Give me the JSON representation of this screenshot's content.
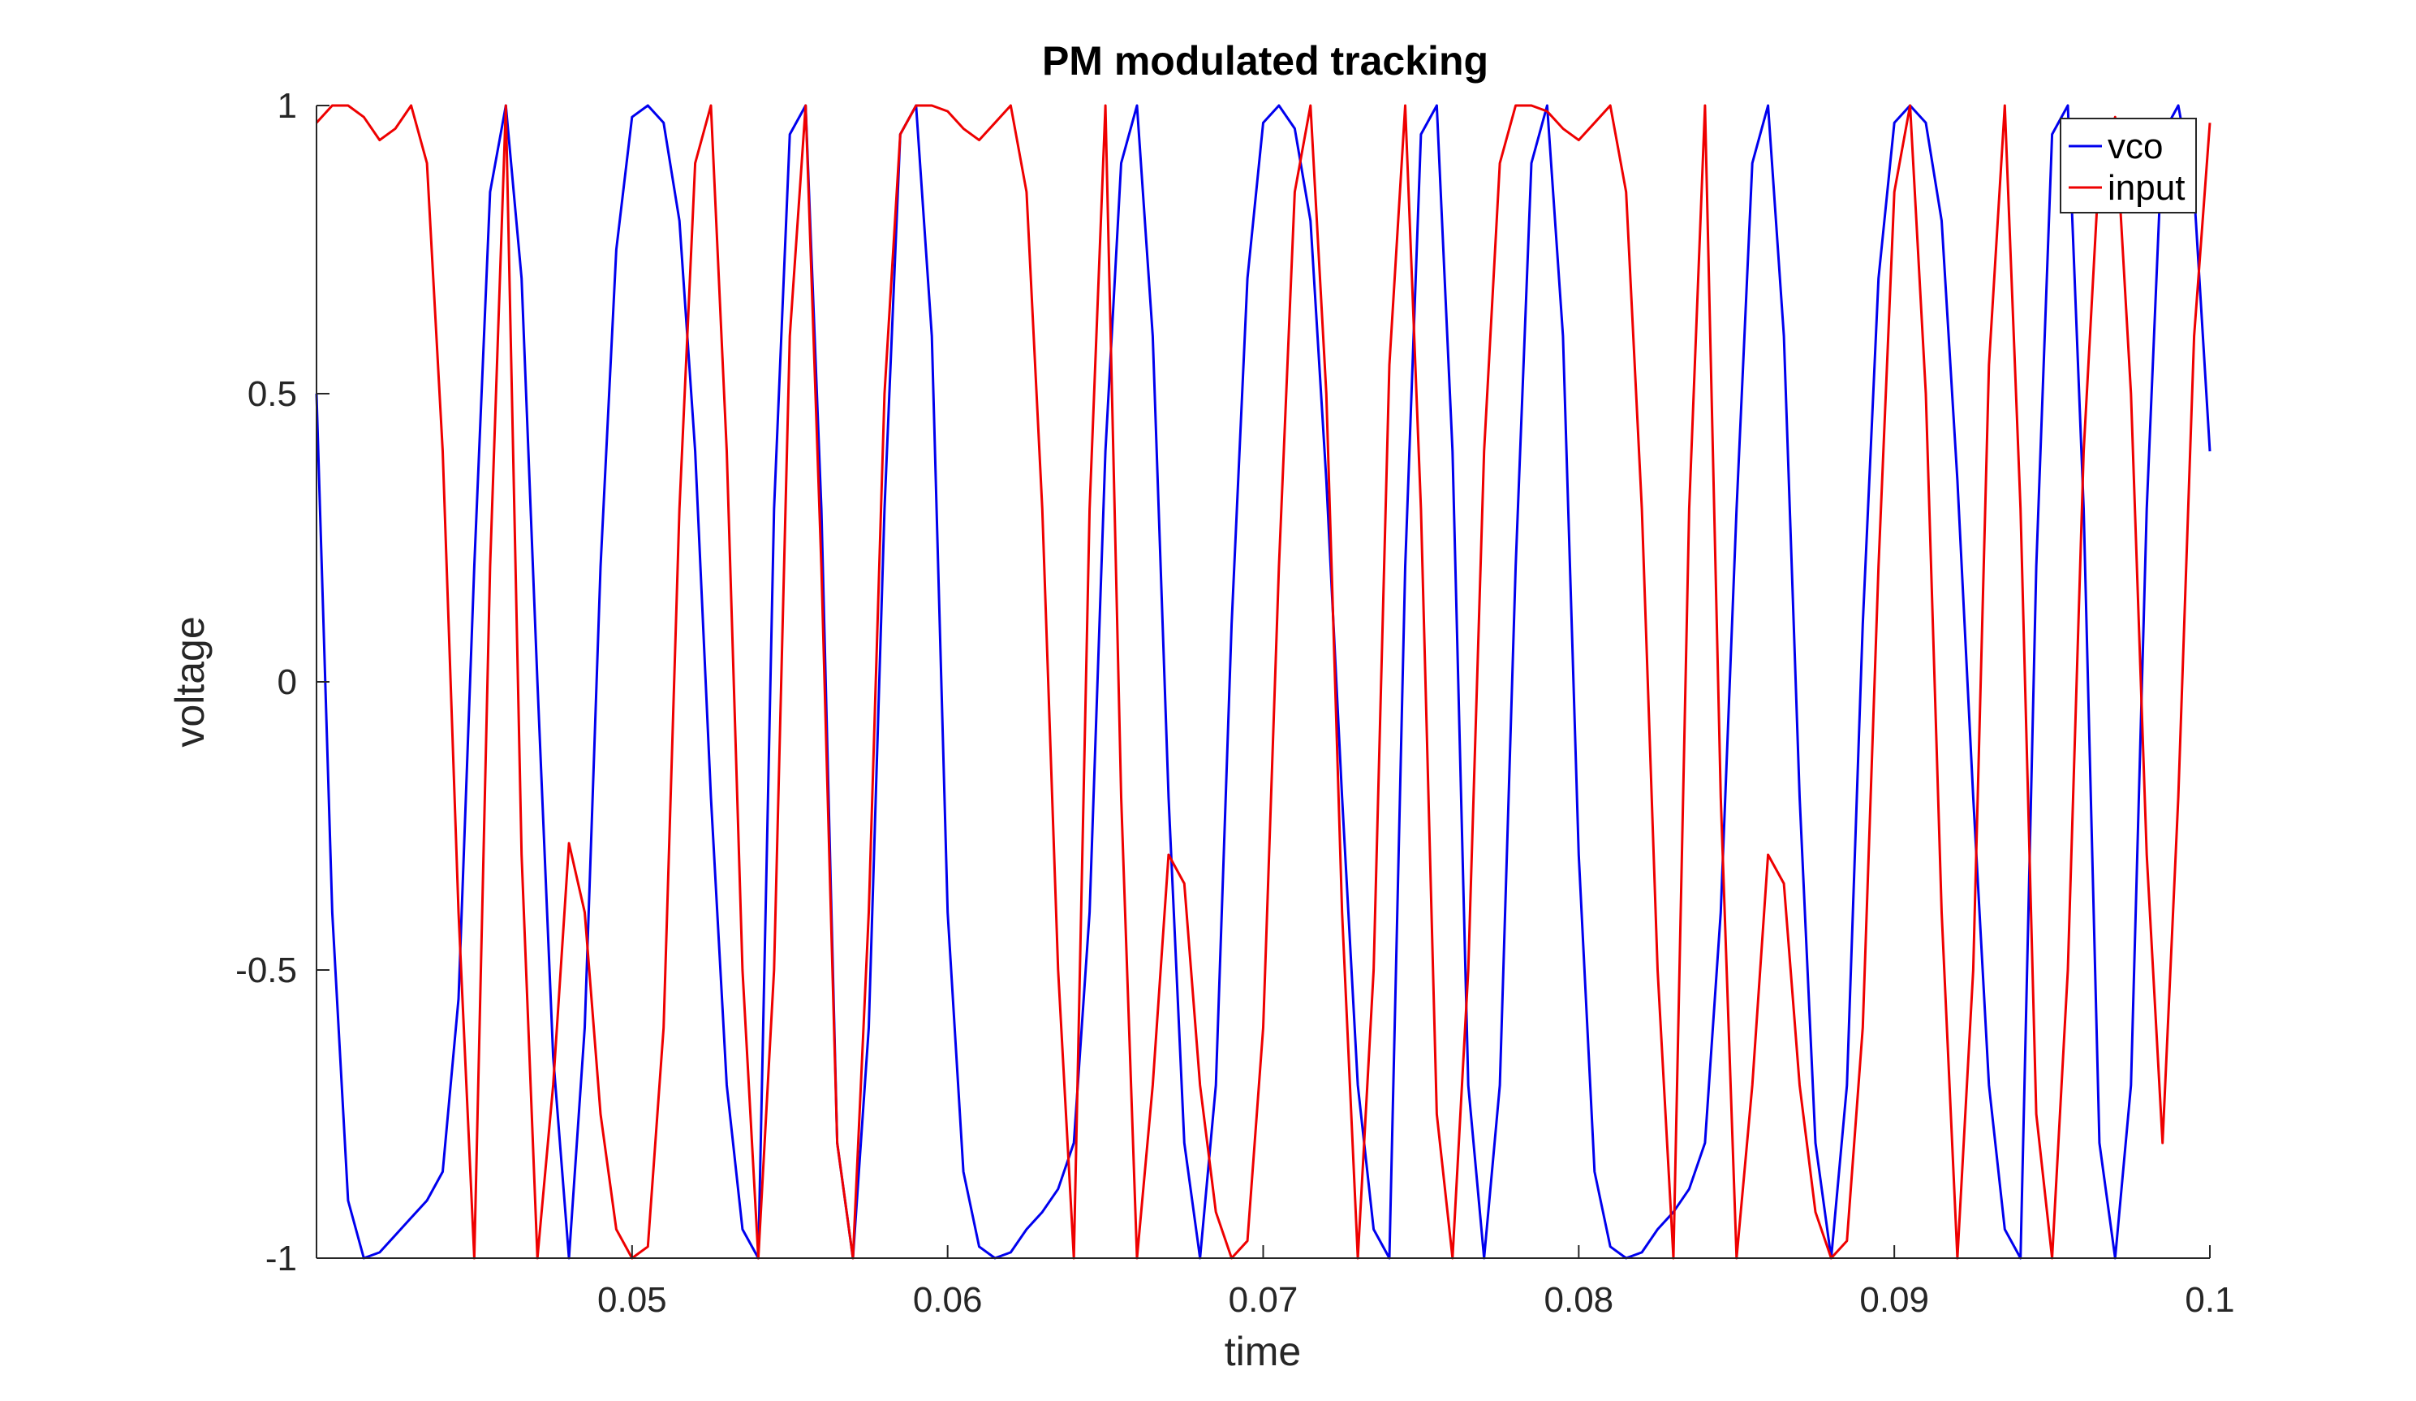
{
  "chart_data": {
    "type": "line",
    "title": "PM modulated tracking",
    "xlabel": "time",
    "ylabel": "voltage",
    "xlim": [
      0.04,
      0.1
    ],
    "ylim": [
      -1,
      1
    ],
    "xticks": [
      0.05,
      0.06,
      0.07,
      0.08,
      0.09,
      0.1
    ],
    "xtick_labels": [
      "0.05",
      "0.06",
      "0.07",
      "0.08",
      "0.09",
      "0.1"
    ],
    "yticks": [
      -1,
      -0.5,
      0,
      0.5,
      1
    ],
    "ytick_labels": [
      "-1",
      "-0.5",
      "0",
      "0.5",
      "1"
    ],
    "grid": false,
    "legend_position": "top-right",
    "series": [
      {
        "name": "vco",
        "color": "#0000ee",
        "x": [
          0.04,
          0.0405,
          0.041,
          0.0415,
          0.042,
          0.0425,
          0.043,
          0.0435,
          0.044,
          0.0445,
          0.045,
          0.0455,
          0.046,
          0.0465,
          0.047,
          0.0475,
          0.048,
          0.0485,
          0.049,
          0.0495,
          0.05,
          0.0505,
          0.051,
          0.0515,
          0.052,
          0.0525,
          0.053,
          0.0535,
          0.054,
          0.0545,
          0.055,
          0.0555,
          0.056,
          0.0565,
          0.057,
          0.0575,
          0.058,
          0.0585,
          0.059,
          0.0595,
          0.06,
          0.0605,
          0.061,
          0.0615,
          0.062,
          0.0625,
          0.063,
          0.0635,
          0.064,
          0.0645,
          0.065,
          0.0655,
          0.066,
          0.0665,
          0.067,
          0.0675,
          0.068,
          0.0685,
          0.069,
          0.0695,
          0.07,
          0.0705,
          0.071,
          0.0715,
          0.072,
          0.0725,
          0.073,
          0.0735,
          0.074,
          0.0745,
          0.075,
          0.0755,
          0.076,
          0.0765,
          0.077,
          0.0775,
          0.078,
          0.0785,
          0.079,
          0.0795,
          0.08,
          0.0805,
          0.081,
          0.0815,
          0.082,
          0.0825,
          0.083,
          0.0835,
          0.084,
          0.0845,
          0.085,
          0.0855,
          0.086,
          0.0865,
          0.087,
          0.0875,
          0.088,
          0.0885,
          0.089,
          0.0895,
          0.09,
          0.0905,
          0.091,
          0.0915,
          0.092,
          0.0925,
          0.093,
          0.0935,
          0.094,
          0.0945,
          0.095,
          0.0955,
          0.096,
          0.0965,
          0.097,
          0.0975,
          0.098,
          0.0985,
          0.099,
          0.0995,
          0.1
        ],
        "y": [
          0.5,
          -0.4,
          -0.9,
          -1,
          -0.99,
          -0.96,
          -0.93,
          -0.9,
          -0.85,
          -0.55,
          0.2,
          0.85,
          1,
          0.7,
          0,
          -0.65,
          -1,
          -0.6,
          0.2,
          0.75,
          0.98,
          1,
          0.97,
          0.8,
          0.4,
          -0.2,
          -0.7,
          -0.95,
          -1,
          0.3,
          0.95,
          1,
          0.3,
          -0.8,
          -1,
          -0.6,
          0.3,
          0.95,
          1,
          0.6,
          -0.4,
          -0.85,
          -0.98,
          -1,
          -0.99,
          -0.95,
          -0.92,
          -0.88,
          -0.8,
          -0.4,
          0.4,
          0.9,
          1,
          0.6,
          -0.2,
          -0.8,
          -1,
          -0.7,
          0.1,
          0.7,
          0.97,
          1,
          0.96,
          0.8,
          0.35,
          -0.2,
          -0.7,
          -0.95,
          -1,
          0.2,
          0.95,
          1,
          0.4,
          -0.7,
          -1,
          -0.7,
          0.2,
          0.9,
          1,
          0.6,
          -0.3,
          -0.85,
          -0.98,
          -1,
          -0.99,
          -0.95,
          -0.92,
          -0.88,
          -0.8,
          -0.4,
          0.3,
          0.9,
          1,
          0.6,
          -0.2,
          -0.8,
          -1,
          -0.7,
          0.1,
          0.7,
          0.97,
          1,
          0.97,
          0.8,
          0.35,
          -0.2,
          -0.7,
          -0.95,
          -1,
          0.2,
          0.95,
          1,
          0.3,
          -0.8,
          -1,
          -0.7,
          0.3,
          0.95,
          1,
          0.85,
          0.4
        ]
      },
      {
        "name": "input",
        "color": "#ee0000",
        "x": [
          0.04,
          0.0405,
          0.041,
          0.0415,
          0.042,
          0.0425,
          0.043,
          0.0435,
          0.044,
          0.0445,
          0.045,
          0.0455,
          0.046,
          0.0465,
          0.047,
          0.0475,
          0.048,
          0.0485,
          0.049,
          0.0495,
          0.05,
          0.0505,
          0.051,
          0.0515,
          0.052,
          0.0525,
          0.053,
          0.0535,
          0.054,
          0.0545,
          0.055,
          0.0555,
          0.056,
          0.0565,
          0.057,
          0.0575,
          0.058,
          0.0585,
          0.059,
          0.0595,
          0.06,
          0.0605,
          0.061,
          0.0615,
          0.062,
          0.0625,
          0.063,
          0.0635,
          0.064,
          0.0645,
          0.065,
          0.0655,
          0.066,
          0.0665,
          0.067,
          0.0675,
          0.068,
          0.0685,
          0.069,
          0.0695,
          0.07,
          0.0705,
          0.071,
          0.0715,
          0.072,
          0.0725,
          0.073,
          0.0735,
          0.074,
          0.0745,
          0.075,
          0.0755,
          0.076,
          0.0765,
          0.077,
          0.0775,
          0.078,
          0.0785,
          0.079,
          0.0795,
          0.08,
          0.0805,
          0.081,
          0.0815,
          0.082,
          0.0825,
          0.083,
          0.0835,
          0.084,
          0.0845,
          0.085,
          0.0855,
          0.086,
          0.0865,
          0.087,
          0.0875,
          0.088,
          0.0885,
          0.089,
          0.0895,
          0.09,
          0.0905,
          0.091,
          0.0915,
          0.092,
          0.0925,
          0.093,
          0.0935,
          0.094,
          0.0945,
          0.095,
          0.0955,
          0.096,
          0.0965,
          0.097,
          0.0975,
          0.098,
          0.0985,
          0.099,
          0.0995,
          0.1
        ],
        "y": [
          0.97,
          1,
          1,
          0.98,
          0.94,
          0.96,
          1,
          0.9,
          0.4,
          -0.4,
          -1,
          0.2,
          1,
          -0.3,
          -1,
          -0.7,
          -0.28,
          -0.4,
          -0.75,
          -0.95,
          -1,
          -0.98,
          -0.6,
          0.3,
          0.9,
          1,
          0.4,
          -0.5,
          -1,
          -0.5,
          0.6,
          1,
          0.2,
          -0.8,
          -1,
          -0.4,
          0.5,
          0.95,
          1,
          1,
          0.99,
          0.96,
          0.94,
          0.97,
          1,
          0.85,
          0.3,
          -0.5,
          -1,
          0.3,
          1,
          -0.2,
          -1,
          -0.7,
          -0.3,
          -0.35,
          -0.7,
          -0.92,
          -1,
          -0.97,
          -0.6,
          0.2,
          0.85,
          1,
          0.5,
          -0.4,
          -1,
          -0.5,
          0.55,
          1,
          0.3,
          -0.75,
          -1,
          -0.5,
          0.4,
          0.9,
          1,
          1,
          0.99,
          0.96,
          0.94,
          0.97,
          1,
          0.85,
          0.3,
          -0.5,
          -1,
          0.3,
          1,
          -0.2,
          -1,
          -0.7,
          -0.3,
          -0.35,
          -0.7,
          -0.92,
          -1,
          -0.97,
          -0.6,
          0.2,
          0.85,
          1,
          0.5,
          -0.4,
          -1,
          -0.5,
          0.55,
          1,
          0.3,
          -0.75,
          -1,
          -0.5,
          0.4,
          0.9,
          0.98,
          0.5,
          -0.3,
          -0.8,
          -0.2,
          0.6,
          0.97
        ]
      }
    ]
  }
}
